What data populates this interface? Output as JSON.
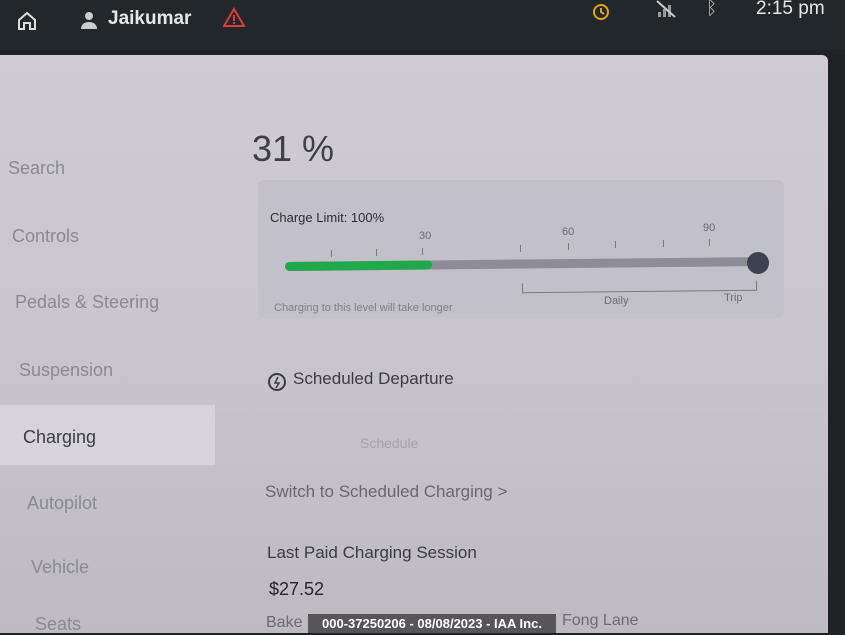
{
  "status_bar": {
    "user": "Jaikumar",
    "time": "2:15 pm",
    "icons": [
      "home-icon",
      "user-icon",
      "warning-icon",
      "alarm-icon",
      "no-signal-icon",
      "bluetooth-icon"
    ]
  },
  "sidebar": {
    "items": [
      {
        "label": "Search"
      },
      {
        "label": "Controls"
      },
      {
        "label": "Pedals & Steering"
      },
      {
        "label": "Suspension"
      },
      {
        "label": "Charging",
        "active": true
      },
      {
        "label": "Autopilot"
      },
      {
        "label": "Vehicle"
      },
      {
        "label": "Seats"
      }
    ]
  },
  "charging": {
    "battery_percent": "31 %",
    "battery_level": 31,
    "charge_limit_label": "Charge Limit: 100%",
    "charge_limit": 100,
    "tick_labels": [
      "30",
      "60",
      "90"
    ],
    "note": "Charging to this level will take longer",
    "range_labels": {
      "daily": "Daily",
      "trip": "Trip"
    },
    "scheduled_departure": "Scheduled Departure",
    "schedule_button": "Schedule",
    "switch_link": "Switch to Scheduled Charging >",
    "last_paid_title": "Last Paid Charging Session",
    "last_paid_amount": "$27.52",
    "location_partial_start": "Bake",
    "location_partial_end": "Fong Lane",
    "fill_color": "#21a84a"
  },
  "watermark": "000-37250206 - 08/08/2023 - IAA Inc."
}
